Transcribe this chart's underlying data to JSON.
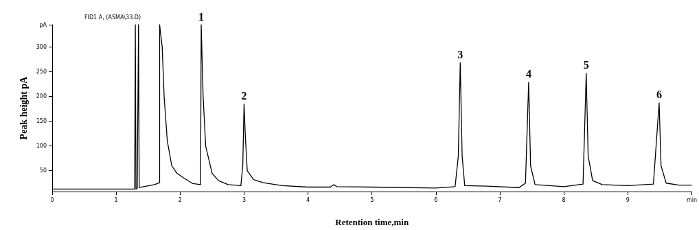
{
  "chart_data": {
    "type": "line",
    "title": "FID1 A, (ASMA\\33.D)",
    "xlabel": "Retention time,min",
    "ylabel": "Peak height pA",
    "xlim": [
      0,
      10
    ],
    "xticks": [
      0,
      1,
      2,
      3,
      4,
      5,
      6,
      7,
      8,
      9,
      {
        "value": 10,
        "label": "min"
      }
    ],
    "ylim": [
      8,
      345
    ],
    "yticks": [
      50,
      100,
      150,
      200,
      250,
      300,
      {
        "value": 345,
        "label": "pA"
      }
    ],
    "grid": false,
    "marker": "none",
    "line_style": "solid",
    "series": [
      {
        "color": "#000000",
        "x": [
          0,
          1.29,
          1.3,
          1.31,
          1.33,
          1.35,
          1.36,
          1.6,
          1.68,
          1.68,
          1.72,
          1.75,
          1.8,
          1.87,
          1.95,
          2.05,
          2.2,
          2.32,
          2.33,
          2.36,
          2.4,
          2.5,
          2.6,
          2.75,
          2.95,
          2.98,
          3.0,
          3.02,
          3.05,
          3.15,
          3.3,
          3.6,
          4.0,
          4.35,
          4.4,
          4.45,
          5.0,
          6.0,
          6.3,
          6.35,
          6.38,
          6.41,
          6.45,
          6.8,
          7.3,
          7.4,
          7.45,
          7.48,
          7.55,
          8.0,
          8.3,
          8.35,
          8.38,
          8.45,
          8.6,
          8.8,
          9.0,
          9.4,
          9.49,
          9.52,
          9.6,
          9.8,
          10.0
        ],
        "values": [
          13,
          13,
          345,
          13,
          15,
          345,
          16,
          22,
          26,
          345,
          300,
          200,
          110,
          60,
          45,
          36,
          24,
          22,
          345,
          200,
          100,
          45,
          30,
          22,
          20,
          60,
          185,
          120,
          50,
          32,
          26,
          20,
          17,
          17,
          22,
          18,
          17,
          15,
          18,
          80,
          268,
          80,
          20,
          19,
          16,
          25,
          229,
          60,
          22,
          18,
          23,
          247,
          80,
          30,
          22,
          21,
          20,
          23,
          187,
          60,
          25,
          21,
          21
        ]
      }
    ],
    "annotations": [
      {
        "text": "1",
        "x": 2.33,
        "y": 345
      },
      {
        "text": "2",
        "x": 3.0,
        "y": 185
      },
      {
        "text": "3",
        "x": 6.38,
        "y": 268
      },
      {
        "text": "4",
        "x": 7.45,
        "y": 229
      },
      {
        "text": "5",
        "x": 8.35,
        "y": 247
      },
      {
        "text": "6",
        "x": 9.49,
        "y": 187
      }
    ]
  }
}
